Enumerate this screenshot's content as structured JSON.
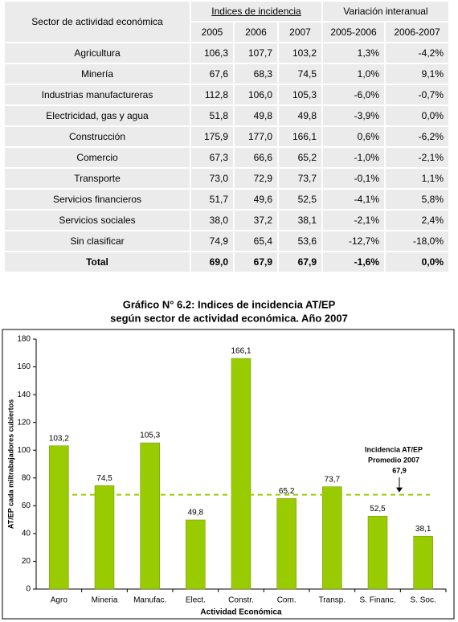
{
  "table": {
    "header": {
      "sector": "Sector de actividad económica",
      "indices": "Indices de incidencia",
      "variacion": "Variación interanual",
      "years": [
        "2005",
        "2006",
        "2007",
        "2005-2006",
        "2006-2007"
      ]
    },
    "rows": [
      [
        "Agricultura",
        "106,3",
        "107,7",
        "103,2",
        "1,3%",
        "-4,2%"
      ],
      [
        "Minería",
        "67,6",
        "68,3",
        "74,5",
        "1,0%",
        "9,1%"
      ],
      [
        "Industrias manufactureras",
        "112,8",
        "106,0",
        "105,3",
        "-6,0%",
        "-0,7%"
      ],
      [
        "Electricidad, gas y agua",
        "51,8",
        "49,8",
        "49,8",
        "-3,9%",
        "0,0%"
      ],
      [
        "Construcción",
        "175,9",
        "177,0",
        "166,1",
        "0,6%",
        "-6,2%"
      ],
      [
        "Comercio",
        "67,3",
        "66,6",
        "65,2",
        "-1,0%",
        "-2,1%"
      ],
      [
        "Transporte",
        "73,0",
        "72,9",
        "73,7",
        "-0,1%",
        "1,1%"
      ],
      [
        "Servicios financieros",
        "51,7",
        "49,6",
        "52,5",
        "-4,1%",
        "5,8%"
      ],
      [
        "Servicios sociales",
        "38,0",
        "37,2",
        "38,1",
        "-2,1%",
        "2,4%"
      ],
      [
        "Sin clasificar",
        "74,9",
        "65,4",
        "53,6",
        "-12,7%",
        "-18,0%"
      ],
      [
        "Total",
        "69,0",
        "67,9",
        "67,9",
        "-1,6%",
        "0,0%"
      ]
    ]
  },
  "chart_data": {
    "type": "bar",
    "title": [
      "Gráfico N° 6.2: Indices de incidencia AT/EP",
      "según sector de actividad económica. Año 2007"
    ],
    "x_label": "Actividad Económica",
    "y_label": "AT/EP cada miltrabajadores cubiertos",
    "categories": [
      "Agro",
      "Mineria",
      "Manufac.",
      "Elect.",
      "Constr.",
      "Com.",
      "Transp.",
      "S. Financ.",
      "S. Soc."
    ],
    "values": [
      103.2,
      74.5,
      105.3,
      49.8,
      166.1,
      65.2,
      73.7,
      52.5,
      38.1
    ],
    "value_labels": [
      "103,2",
      "74,5",
      "105,3",
      "49,8",
      "166,1",
      "65,2",
      "73,7",
      "52,5",
      "38,1"
    ],
    "color": "#99cc00",
    "ylim": [
      0,
      180
    ],
    "yticks": [
      0,
      20,
      40,
      60,
      80,
      100,
      120,
      140,
      160,
      180
    ],
    "reference": {
      "value": 67.9,
      "label": "67,9",
      "text": [
        "Incidencia AT/EP",
        "Promedio 2007"
      ],
      "color": "#99cc00"
    }
  }
}
